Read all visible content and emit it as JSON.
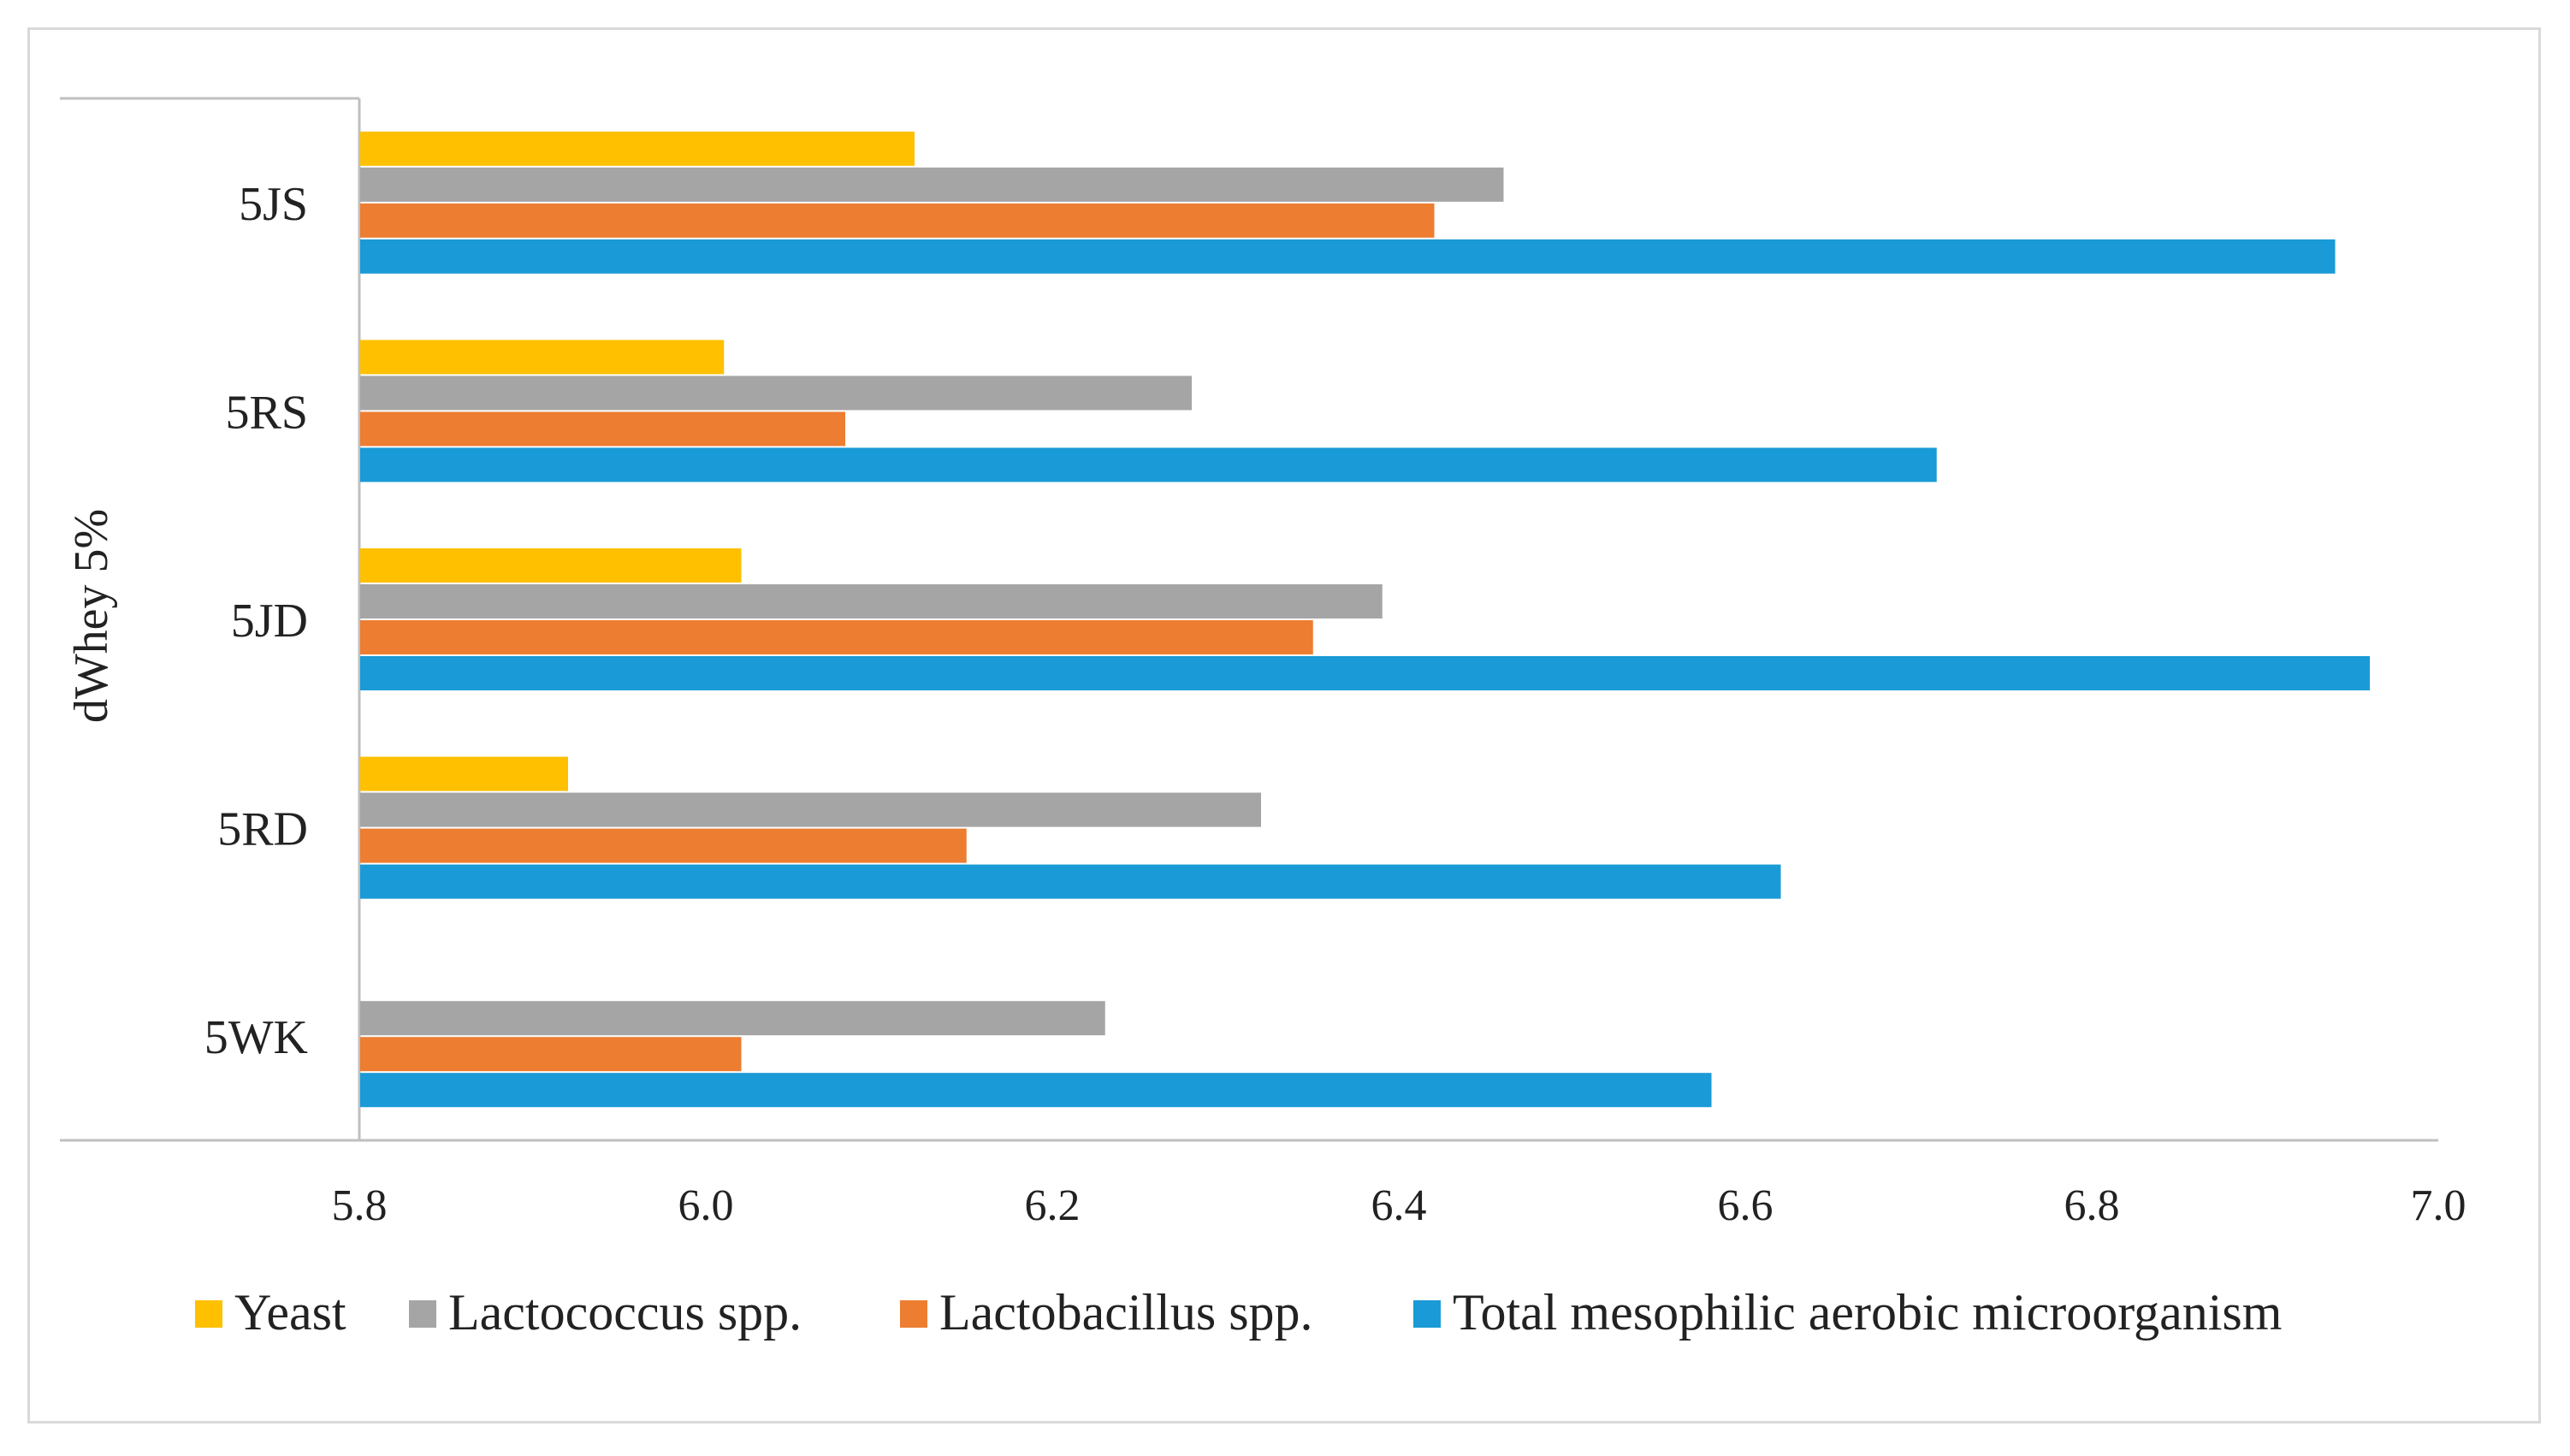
{
  "chart_data": {
    "type": "bar",
    "orientation": "horizontal",
    "group_label": "dWhey 5%",
    "categories": [
      "5WK",
      "5RD",
      "5JD",
      "5RS",
      "5JS"
    ],
    "series": [
      {
        "name": "Yeast",
        "color": "#FFC000",
        "values": [
          null,
          5.92,
          6.02,
          6.01,
          6.12
        ]
      },
      {
        "name": "Lactococcus spp.",
        "color": "#A5A5A5",
        "values": [
          6.23,
          6.32,
          6.39,
          6.28,
          6.46
        ]
      },
      {
        "name": "Lactobacillus spp.",
        "color": "#ED7D31",
        "values": [
          6.02,
          6.15,
          6.35,
          6.08,
          6.42
        ]
      },
      {
        "name": "Total mesophilic aerobic microorganism",
        "color": "#1A9AD6",
        "values": [
          6.58,
          6.62,
          6.96,
          6.71,
          6.94
        ]
      }
    ],
    "xlim": [
      5.8,
      7.0
    ],
    "x_ticks": [
      "5.8",
      "6.0",
      "6.2",
      "6.4",
      "6.6",
      "6.8",
      "7.0"
    ],
    "legend_position": "bottom",
    "grid": false
  }
}
